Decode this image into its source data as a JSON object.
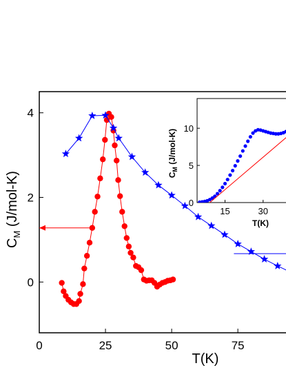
{
  "chart_data": [
    {
      "type": "scatter",
      "title": "",
      "xlabel": "T(K)",
      "ylabel": "C_M (J/mol-K)",
      "ylabel_main": "C",
      "ylabel_sub": "M",
      "ylabel_rest": " (J/mol-K)",
      "xlim": [
        0,
        95
      ],
      "ylim": [
        -1.2,
        4.5
      ],
      "xticks": [
        0,
        25,
        50,
        75
      ],
      "xtick_labels": [
        "0",
        "25",
        "50",
        "75"
      ],
      "yticks": [
        0,
        2,
        4
      ],
      "ytick_labels": [
        "0",
        "2",
        "4"
      ],
      "series": [
        {
          "marker": "circle",
          "color": "#ff0000",
          "line": true,
          "points": [
            [
              8.5,
              -0.02
            ],
            [
              9.2,
              -0.22
            ],
            [
              10.0,
              -0.33
            ],
            [
              11.0,
              -0.42
            ],
            [
              12.0,
              -0.48
            ],
            [
              13.0,
              -0.52
            ],
            [
              14.0,
              -0.52
            ],
            [
              15.0,
              -0.45
            ],
            [
              15.5,
              -0.28
            ],
            [
              16.5,
              -0.05
            ],
            [
              17.0,
              0.32
            ],
            [
              18.0,
              0.62
            ],
            [
              19.0,
              0.93
            ],
            [
              20.0,
              1.28
            ],
            [
              21.0,
              1.66
            ],
            [
              22.0,
              2.02
            ],
            [
              23.0,
              2.45
            ],
            [
              24.0,
              2.9
            ],
            [
              24.8,
              3.36
            ],
            [
              25.5,
              3.83
            ],
            [
              26.3,
              3.98
            ],
            [
              27.2,
              3.9
            ],
            [
              28.0,
              3.58
            ],
            [
              28.5,
              3.23
            ],
            [
              29.2,
              2.87
            ],
            [
              29.8,
              2.41
            ],
            [
              30.5,
              2.03
            ],
            [
              31.3,
              1.66
            ],
            [
              32.2,
              1.32
            ],
            [
              33.0,
              1.04
            ],
            [
              33.8,
              0.84
            ],
            [
              34.5,
              0.69
            ],
            [
              35.5,
              0.58
            ],
            [
              36.5,
              0.38
            ],
            [
              37.5,
              0.35
            ],
            [
              38.5,
              0.28
            ],
            [
              39.5,
              0.06
            ],
            [
              40.5,
              0.03
            ],
            [
              41.5,
              0.04
            ],
            [
              42.5,
              0.04
            ],
            [
              43.5,
              -0.02
            ],
            [
              44.5,
              -0.11
            ],
            [
              45.5,
              -0.06
            ],
            [
              46.5,
              -0.02
            ],
            [
              47.5,
              0.0
            ],
            [
              48.5,
              0.03
            ],
            [
              49.5,
              0.04
            ],
            [
              50.5,
              0.06
            ]
          ]
        },
        {
          "marker": "star",
          "color": "#0000ff",
          "line": true,
          "points": [
            [
              10,
              3.03
            ],
            [
              15,
              3.4
            ],
            [
              20,
              3.93
            ],
            [
              25,
              3.94
            ],
            [
              28,
              3.64
            ],
            [
              30,
              3.4
            ],
            [
              35,
              2.96
            ],
            [
              40,
              2.59
            ],
            [
              45,
              2.29
            ],
            [
              50,
              2.05
            ],
            [
              55,
              1.8
            ],
            [
              60,
              1.54
            ],
            [
              65,
              1.33
            ],
            [
              70,
              1.12
            ],
            [
              75,
              0.9
            ],
            [
              80,
              0.72
            ],
            [
              85,
              0.54
            ],
            [
              90,
              0.38
            ],
            [
              95,
              0.23
            ]
          ]
        }
      ],
      "annotations": [
        {
          "type": "arrow",
          "color": "#ff0000",
          "from": [
            19,
            1.28
          ],
          "to": [
            0,
            1.28
          ]
        },
        {
          "type": "line",
          "color": "#0000ff",
          "from": [
            73.5,
            0.67
          ],
          "to": [
            95,
            0.67
          ]
        }
      ]
    },
    {
      "type": "scatter",
      "title": "",
      "xlabel": "T(K)",
      "ylabel": "C_M (J/mol-K)",
      "ylabel_main": "C",
      "ylabel_sub": "M",
      "ylabel_rest": " (J/mol-K)",
      "xlim": [
        4,
        42
      ],
      "ylim": [
        0,
        14
      ],
      "xticks": [
        15,
        30
      ],
      "xtick_labels": [
        "15",
        "30"
      ],
      "yticks": [
        0,
        5,
        10
      ],
      "ytick_labels": [
        "0",
        "5",
        "10"
      ],
      "series": [
        {
          "marker": "circle",
          "color": "#0000ff",
          "line": false,
          "points": [
            [
              5,
              0.05
            ],
            [
              6,
              0.1
            ],
            [
              7,
              0.15
            ],
            [
              8,
              0.25
            ],
            [
              9,
              0.4
            ],
            [
              10,
              0.6
            ],
            [
              11,
              0.85
            ],
            [
              12,
              1.2
            ],
            [
              13,
              1.6
            ],
            [
              14,
              2.05
            ],
            [
              15,
              2.55
            ],
            [
              16,
              3.1
            ],
            [
              17,
              3.7
            ],
            [
              18,
              4.3
            ],
            [
              19,
              4.95
            ],
            [
              20,
              5.6
            ],
            [
              21,
              6.25
            ],
            [
              22,
              6.95
            ],
            [
              23,
              7.6
            ],
            [
              24,
              8.25
            ],
            [
              25,
              8.85
            ],
            [
              26,
              9.35
            ],
            [
              27,
              9.65
            ],
            [
              28,
              9.8
            ],
            [
              29,
              9.75
            ],
            [
              30,
              9.65
            ],
            [
              31,
              9.55
            ],
            [
              32,
              9.45
            ],
            [
              33,
              9.35
            ],
            [
              34,
              9.3
            ],
            [
              35,
              9.25
            ],
            [
              36,
              9.25
            ],
            [
              37,
              9.3
            ],
            [
              38,
              9.4
            ],
            [
              39,
              9.55
            ],
            [
              40,
              9.75
            ],
            [
              41,
              9.9
            ],
            [
              42,
              10.0
            ]
          ]
        },
        {
          "marker": "none",
          "color": "#ff0000",
          "line": true,
          "points": [
            [
              9,
              0
            ],
            [
              42,
              9.6
            ]
          ]
        }
      ]
    }
  ]
}
